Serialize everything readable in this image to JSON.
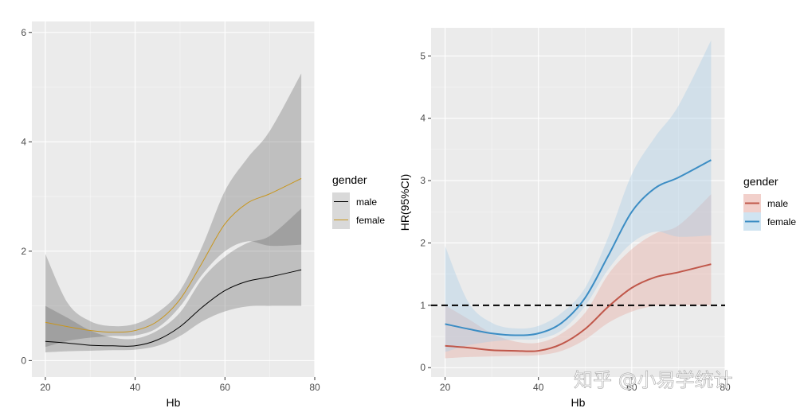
{
  "watermark": "知乎 @小易学统计",
  "chart_data": [
    {
      "type": "line",
      "style": "grayscale",
      "title": "",
      "xlabel": "Hb",
      "ylabel": "",
      "xlim": [
        17,
        80
      ],
      "ylim": [
        -0.3,
        6.2
      ],
      "xticks": [
        20,
        40,
        60,
        80
      ],
      "yticks": [
        0,
        2,
        4,
        6
      ],
      "legend": {
        "title": "gender",
        "position": "right",
        "labels": [
          "male",
          "female"
        ]
      },
      "x": [
        20,
        25,
        30,
        35,
        40,
        45,
        50,
        55,
        60,
        65,
        70,
        77
      ],
      "series": [
        {
          "name": "male",
          "color": "#000000",
          "values": [
            0.35,
            0.32,
            0.28,
            0.27,
            0.27,
            0.38,
            0.62,
            0.98,
            1.28,
            1.45,
            1.53,
            1.66
          ],
          "lower": [
            0.15,
            0.17,
            0.18,
            0.19,
            0.2,
            0.27,
            0.45,
            0.72,
            0.9,
            0.99,
            1.0,
            1.0
          ],
          "upper": [
            1.0,
            0.78,
            0.55,
            0.42,
            0.4,
            0.55,
            0.88,
            1.5,
            1.9,
            2.15,
            2.28,
            2.78
          ]
        },
        {
          "name": "female",
          "color": "#c8961e",
          "values": [
            0.7,
            0.62,
            0.55,
            0.52,
            0.55,
            0.72,
            1.12,
            1.8,
            2.5,
            2.88,
            3.05,
            3.33
          ],
          "lower": [
            0.25,
            0.36,
            0.42,
            0.45,
            0.46,
            0.6,
            0.99,
            1.58,
            2.0,
            2.18,
            2.1,
            2.12
          ],
          "upper": [
            1.95,
            1.05,
            0.72,
            0.63,
            0.67,
            0.88,
            1.28,
            2.1,
            3.1,
            3.7,
            4.2,
            5.25
          ]
        }
      ]
    },
    {
      "type": "line",
      "style": "color",
      "title": "",
      "xlabel": "Hb",
      "ylabel": "HR(95%CI)",
      "xlim": [
        17,
        80
      ],
      "ylim": [
        -0.15,
        5.45
      ],
      "xticks": [
        20,
        40,
        60,
        80
      ],
      "yticks": [
        0,
        1,
        2,
        3,
        4,
        5
      ],
      "reference_line": {
        "y": 1,
        "style": "dashed",
        "color": "#000000"
      },
      "legend": {
        "title": "gender",
        "position": "right",
        "labels": [
          "male",
          "female"
        ]
      },
      "x": [
        20,
        25,
        30,
        35,
        40,
        45,
        50,
        55,
        60,
        65,
        70,
        77
      ],
      "series": [
        {
          "name": "male",
          "color": "#c0574a",
          "fill": "#e7a9a0",
          "values": [
            0.35,
            0.32,
            0.28,
            0.27,
            0.27,
            0.38,
            0.62,
            0.98,
            1.28,
            1.45,
            1.53,
            1.66
          ],
          "lower": [
            0.15,
            0.17,
            0.18,
            0.19,
            0.2,
            0.27,
            0.45,
            0.72,
            0.9,
            0.99,
            1.0,
            1.0
          ],
          "upper": [
            1.0,
            0.78,
            0.55,
            0.42,
            0.4,
            0.55,
            0.88,
            1.5,
            1.9,
            2.15,
            2.28,
            2.78
          ]
        },
        {
          "name": "female",
          "color": "#3c8dc4",
          "fill": "#a9cde6",
          "values": [
            0.7,
            0.62,
            0.55,
            0.52,
            0.55,
            0.72,
            1.12,
            1.8,
            2.5,
            2.88,
            3.05,
            3.33
          ],
          "lower": [
            0.25,
            0.36,
            0.42,
            0.45,
            0.46,
            0.6,
            0.99,
            1.58,
            2.0,
            2.18,
            2.1,
            2.12
          ],
          "upper": [
            1.95,
            1.05,
            0.72,
            0.63,
            0.67,
            0.88,
            1.28,
            2.1,
            3.1,
            3.7,
            4.2,
            5.25
          ]
        }
      ]
    }
  ]
}
